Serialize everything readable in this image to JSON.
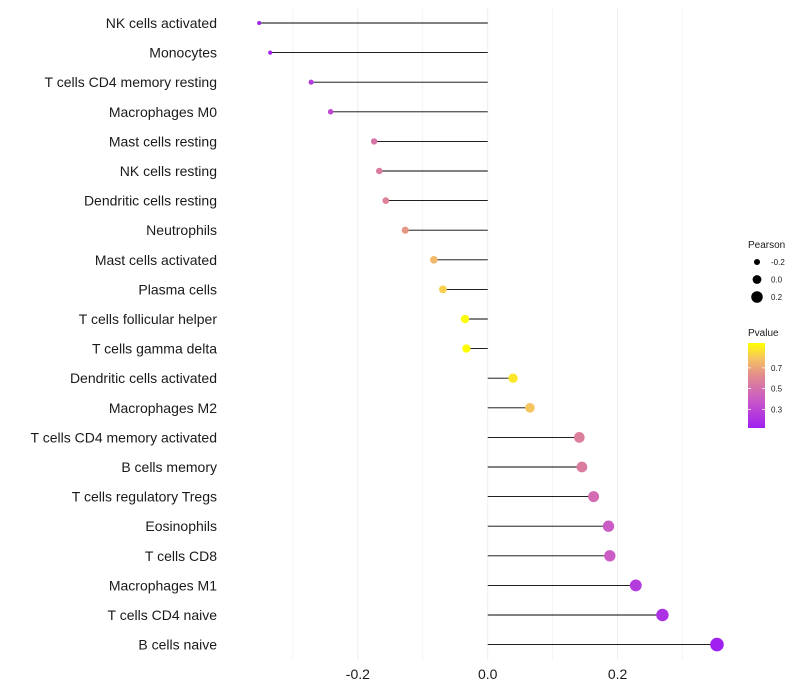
{
  "chart_data": {
    "type": "lollipop",
    "categories": [
      "NK cells activated",
      "Monocytes",
      "T cells CD4 memory resting",
      "Macrophages M0",
      "Mast cells resting",
      "NK cells resting",
      "Dendritic cells resting",
      "Neutrophils",
      "Mast cells activated",
      "Plasma cells",
      "T cells follicular helper",
      "T cells gamma delta",
      "Dendritic cells activated",
      "Macrophages M2",
      "T cells CD4 memory activated",
      "B cells memory",
      "T cells regulatory  Tregs ",
      "Eosinophils",
      "T cells CD8",
      "Macrophages M1",
      "T cells CD4 naive",
      "B cells naive"
    ],
    "pearson": [
      -0.352,
      -0.335,
      -0.272,
      -0.242,
      -0.175,
      -0.167,
      -0.157,
      -0.127,
      -0.083,
      -0.069,
      -0.035,
      -0.033,
      0.039,
      0.065,
      0.141,
      0.145,
      0.163,
      0.186,
      0.188,
      0.228,
      0.269,
      0.353
    ],
    "pvalue": [
      0.12,
      0.15,
      0.25,
      0.32,
      0.52,
      0.55,
      0.58,
      0.66,
      0.76,
      0.82,
      0.93,
      0.94,
      0.88,
      0.79,
      0.57,
      0.55,
      0.48,
      0.4,
      0.4,
      0.25,
      0.2,
      0.12
    ],
    "x_ticks": [
      -0.2,
      0.0,
      0.2
    ],
    "x_tick_labels": [
      "-0.2",
      "0.0",
      "0.2"
    ],
    "xlim": [
      -0.4,
      0.37
    ],
    "legend_size": {
      "title": "Pearson",
      "values": [
        -0.2,
        0.0,
        0.2
      ],
      "labels": [
        "-0.2",
        "0.0",
        "0.2"
      ]
    },
    "legend_color": {
      "title": "Pvalue",
      "range": [
        0.12,
        0.94
      ],
      "ticks": [
        0.7,
        0.5,
        0.3
      ],
      "tick_labels": [
        "0.7",
        "0.5",
        "0.3"
      ],
      "low_color": "#a020f0",
      "high_color": "#ffff00"
    },
    "segment_color": "#000000",
    "grid_color": "#ebebeb",
    "legend_position": "right"
  }
}
